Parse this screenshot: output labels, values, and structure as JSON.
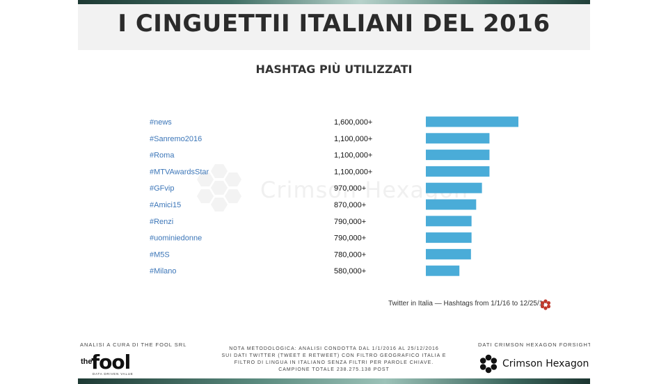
{
  "header": {
    "title": "I CINGUETTII ITALIANI DEL 2016",
    "subtitle": "HASHTAG PIÙ UTILIZZATI"
  },
  "watermark": {
    "text": "Crimson Hexagon"
  },
  "chart_data": {
    "type": "bar",
    "orientation": "horizontal",
    "title": "HASHTAG PIÙ UTILIZZATI",
    "categories": [
      "#news",
      "#Sanremo2016",
      "#Roma",
      "#MTVAwardsStar",
      "#GFvip",
      "#Amici15",
      "#Renzi",
      "#uominiedonne",
      "#M5S",
      "#Milano"
    ],
    "value_labels": [
      "1,600,000+",
      "1,100,000+",
      "1,100,000+",
      "1,100,000+",
      "970,000+",
      "870,000+",
      "790,000+",
      "790,000+",
      "780,000+",
      "580,000+"
    ],
    "values": [
      1600000,
      1100000,
      1100000,
      1100000,
      970000,
      870000,
      790000,
      790000,
      780000,
      580000
    ],
    "xlim": [
      0,
      1600000
    ],
    "bar_color": "#4aacd8",
    "label_color": "#3c76b8",
    "grid": false
  },
  "caption": {
    "text": "Twitter in Italia — Hashtags from 1/1/16 to 12/25/16"
  },
  "footer": {
    "left_label": "ANALISI A CURA DI THE FOOL SRL",
    "fool_logo": {
      "the": "the",
      "word": "fool",
      "tagline": "DATA DRIVEN VALUE"
    },
    "note_lines": [
      "NOTA METODOLOGICA: ANALISI CONDOTTA DAL 1/1/2016 AL 25/12/2016",
      "SUI DATI TWITTER (TWEET E RETWEET) CON FILTRO GEOGRAFICO ITALIA E",
      "FILTRO DI LINGUA IN ITALIANO SENZA FILTRI PER PAROLE CHIAVE.",
      "CAMPIONE TOTALE 238.275.138 POST"
    ],
    "right_label": "DATI CRIMSON HEXAGON FORSIGHT™",
    "ch_logo_text": "Crimson Hexagon"
  },
  "colors": {
    "background": "#ffffff",
    "title_band": "#f2f2f2",
    "title_text": "#2b2b2b",
    "accent_red": "#c0392b"
  },
  "icons": {
    "caption_logo": "crimson-hexagon-red-flower-icon",
    "watermark_logo": "hexagon-cluster-icon",
    "footer_logo": "crimson-hexagon-black-flower-icon"
  }
}
